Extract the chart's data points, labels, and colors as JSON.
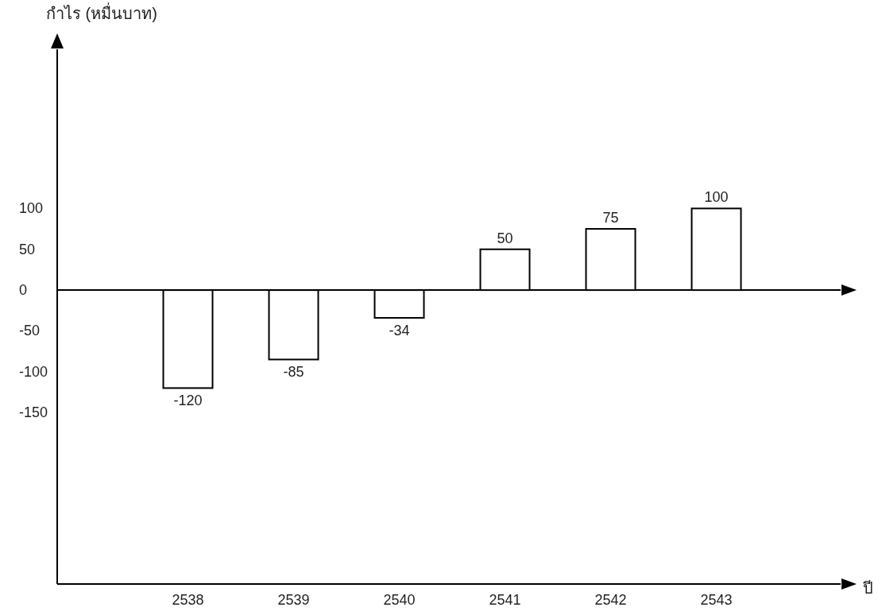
{
  "chart_data": {
    "type": "bar",
    "ylabel": "กำไร (หมื่นบาท)",
    "xlabel": "ปี",
    "categories": [
      "2538",
      "2539",
      "2540",
      "2541",
      "2542",
      "2543"
    ],
    "values": [
      -120,
      -85,
      -34,
      50,
      75,
      100
    ],
    "color": "#ffffff",
    "data_labels": true,
    "ylim": [
      -360,
      295
    ],
    "yticks": [
      -150,
      -100,
      -50,
      0,
      50,
      100
    ]
  }
}
